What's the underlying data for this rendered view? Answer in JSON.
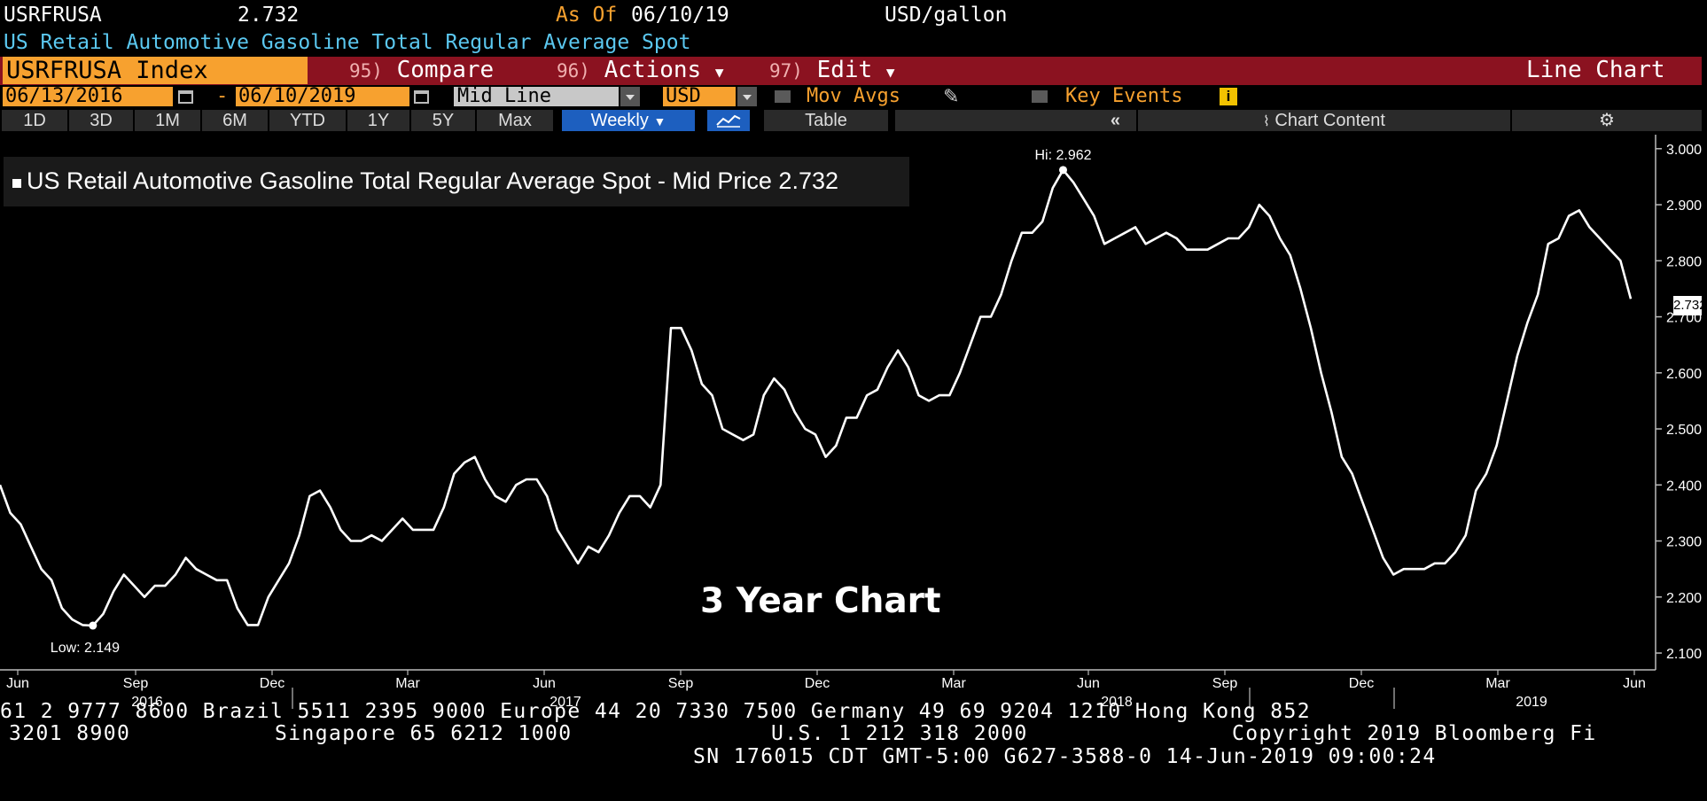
{
  "header": {
    "ticker": "USRFRUSA",
    "last_value": "2.732",
    "as_of_label": "As Of",
    "as_of_date": "06/10/19",
    "units": "USD/gallon",
    "description": "US Retail Automotive Gasoline Total Regular Average Spot"
  },
  "command_bar": {
    "security": "USRFRUSA Index",
    "compare_num": "95)",
    "compare": "Compare",
    "actions_num": "96)",
    "actions": "Actions",
    "edit_num": "97)",
    "edit": "Edit",
    "chart_type": "Line Chart"
  },
  "controls": {
    "start_date": "06/13/2016",
    "dash": "-",
    "end_date": "06/10/2019",
    "line_type": "Mid Line",
    "currency": "USD",
    "mov_avgs": "Mov Avgs",
    "key_events": "Key Events"
  },
  "periods": [
    "1D",
    "3D",
    "1M",
    "6M",
    "YTD",
    "1Y",
    "5Y",
    "Max"
  ],
  "toolbar": {
    "frequency": "Weekly",
    "table": "Table",
    "collapse": "«",
    "chart_content": "Chart Content"
  },
  "chart_data": {
    "type": "line",
    "legend": "US Retail Automotive Gasoline Total Regular Average Spot - Mid Price 2.732",
    "annotation": "3 Year Chart",
    "hi_label": "Hi: 2.962",
    "low_label": "Low: 2.149",
    "last_label": "2.732",
    "y_ticks": [
      "3.000",
      "2.900",
      "2.800",
      "2.700",
      "2.600",
      "2.500",
      "2.400",
      "2.300",
      "2.200",
      "2.100"
    ],
    "ylim": [
      2.07,
      3.025
    ],
    "x_month_labels": [
      "Jun",
      "Sep",
      "Dec",
      "Mar",
      "Jun",
      "Sep",
      "Dec",
      "Mar",
      "Jun",
      "Sep",
      "Dec",
      "Mar",
      "Jun"
    ],
    "x_year_labels": [
      "2016",
      "2017",
      "2018",
      "2019"
    ],
    "series": [
      {
        "values": [
          2.4,
          2.35,
          2.33,
          2.29,
          2.25,
          2.23,
          2.18,
          2.16,
          2.15,
          2.149,
          2.17,
          2.21,
          2.24,
          2.22,
          2.2,
          2.22,
          2.22,
          2.24,
          2.27,
          2.25,
          2.24,
          2.23,
          2.23,
          2.18,
          2.15,
          2.15,
          2.2,
          2.23,
          2.26,
          2.31,
          2.38,
          2.39,
          2.36,
          2.32,
          2.3,
          2.3,
          2.31,
          2.3,
          2.32,
          2.34,
          2.32,
          2.32,
          2.32,
          2.36,
          2.42,
          2.44,
          2.45,
          2.41,
          2.38,
          2.37,
          2.4,
          2.41,
          2.41,
          2.38,
          2.32,
          2.29,
          2.26,
          2.29,
          2.28,
          2.31,
          2.35,
          2.38,
          2.38,
          2.36,
          2.4,
          2.68,
          2.68,
          2.64,
          2.58,
          2.56,
          2.5,
          2.49,
          2.48,
          2.49,
          2.56,
          2.59,
          2.57,
          2.53,
          2.5,
          2.49,
          2.45,
          2.47,
          2.52,
          2.52,
          2.56,
          2.57,
          2.61,
          2.64,
          2.61,
          2.56,
          2.55,
          2.56,
          2.56,
          2.6,
          2.65,
          2.7,
          2.7,
          2.74,
          2.8,
          2.85,
          2.85,
          2.87,
          2.93,
          2.962,
          2.94,
          2.91,
          2.88,
          2.83,
          2.84,
          2.85,
          2.86,
          2.83,
          2.84,
          2.85,
          2.84,
          2.82,
          2.82,
          2.82,
          2.83,
          2.84,
          2.84,
          2.86,
          2.9,
          2.88,
          2.84,
          2.81,
          2.75,
          2.68,
          2.6,
          2.53,
          2.45,
          2.42,
          2.37,
          2.32,
          2.27,
          2.24,
          2.25,
          2.25,
          2.25,
          2.26,
          2.26,
          2.28,
          2.31,
          2.39,
          2.42,
          2.47,
          2.55,
          2.63,
          2.69,
          2.74,
          2.83,
          2.84,
          2.88,
          2.89,
          2.86,
          2.84,
          2.82,
          2.8,
          2.732
        ]
      }
    ]
  },
  "footer": {
    "line1": "61 2 9777 8600 Brazil 5511 2395 9000 Europe 44 20 7330 7500 Germany 49 69 9204 1210 Hong Kong 852",
    "line2_left": "3201 8900",
    "line2_mid": "Singapore 65 6212 1000",
    "line2_right": "U.S. 1 212 318 2000",
    "line2_copy": "Copyright 2019 Bloomberg Fi",
    "line3": "SN 176015 CDT  GMT-5:00 G627-3588-0 14-Jun-2019 09:00:24"
  },
  "colors": {
    "accent_orange": "#f7a12f",
    "bar_red": "#8b1220",
    "desc_cyan": "#5bc8f0",
    "active_blue": "#1d5fbf"
  }
}
